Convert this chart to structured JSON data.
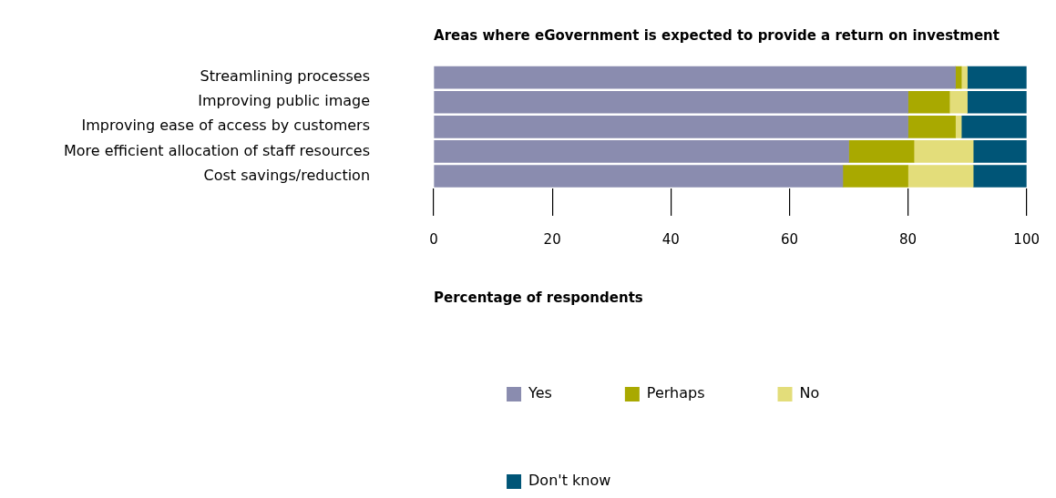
{
  "chart_data": {
    "type": "bar",
    "orientation": "horizontal",
    "stacked": true,
    "title": "Areas where eGovernment is expected to provide a return on investment",
    "xlabel": "Percentage of respondents",
    "categories": [
      "Streamlining processes",
      "Improving public image",
      "Improving ease of access by customers",
      "More efficient allocation of staff resources",
      "Cost savings/reduction"
    ],
    "series": [
      {
        "name": "Yes",
        "color": "#8a8caf",
        "values": [
          88,
          80,
          80,
          70,
          69
        ]
      },
      {
        "name": "Perhaps",
        "color": "#a9a900",
        "values": [
          1,
          7,
          8,
          11,
          11
        ]
      },
      {
        "name": "No",
        "color": "#e3dd7a",
        "values": [
          1,
          3,
          1,
          10,
          11
        ]
      },
      {
        "name": "Don't know",
        "color": "#005577",
        "values": [
          10,
          10,
          11,
          9,
          9
        ]
      }
    ],
    "xlim": [
      0,
      100
    ],
    "xticks": [
      0,
      20,
      40,
      60,
      80,
      100
    ],
    "legend": "bottom"
  }
}
